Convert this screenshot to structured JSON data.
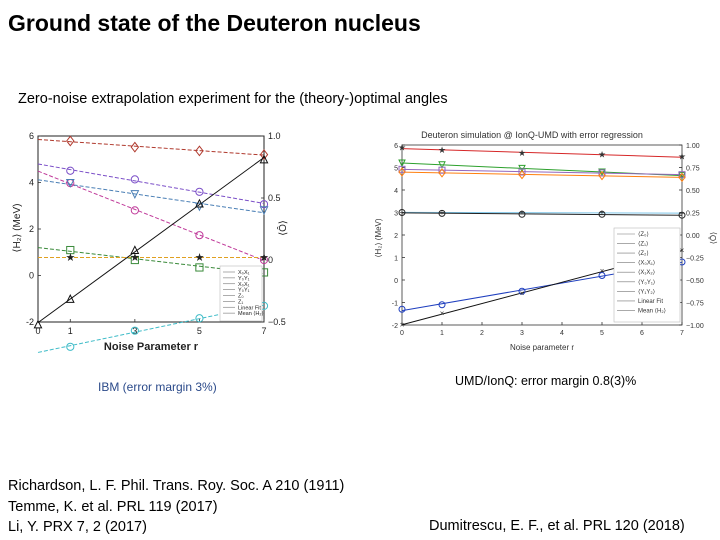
{
  "title": "Ground state of the Deuteron nucleus",
  "subtitle": "Zero-noise extrapolation experiment for the (theory-)optimal angles",
  "captions": {
    "left": "IBM (error margin 3%)",
    "right": "UMD/IonQ: error margin 0.8(3)%"
  },
  "references": {
    "left": [
      "Richardson, L. F. Phil. Trans. Roy. Soc. A 210  (1911)",
      "Temme, K.  et al. PRL 119 (2017)",
      "Li, Y. PRX 7, 2 (2017)"
    ],
    "right": "Dumitrescu, E. F., et al. PRL 120 (2018)"
  },
  "chart_data": [
    {
      "type": "line",
      "xlabel": "Noise Parameter r",
      "ylabel": "⟨H₂⟩ (MeV)",
      "y2label": "⟨Ô⟩",
      "xticks": [
        0,
        1,
        3,
        5,
        7
      ],
      "xlim": [
        0,
        7
      ],
      "ylim": [
        -2,
        6
      ],
      "yticks": [
        -2,
        0,
        2,
        4,
        6
      ],
      "y2lim": [
        -0.5,
        1.0
      ],
      "y2ticks": [
        "−0.5",
        "0",
        "0.5",
        "1.0"
      ],
      "legend": [
        "X₀X₁",
        "Y₀Y₁",
        "X₀X₁",
        "Y₀Y₁",
        "Z₀",
        "Z₁",
        "Linear Fit",
        "Mean ⟨H₂⟩"
      ],
      "legend_position": "bottom-right",
      "grid": false,
      "series": [
        {
          "color": "#b03a2e",
          "marker": "diamond",
          "axis": "right",
          "x": [
            1,
            3,
            5,
            7
          ],
          "values": [
            0.96,
            0.91,
            0.88,
            0.85
          ]
        },
        {
          "color": "#7b4fc8",
          "marker": "circle",
          "axis": "right",
          "x": [
            1,
            3,
            5,
            7
          ],
          "values": [
            0.72,
            0.65,
            0.55,
            0.45
          ]
        },
        {
          "color": "#c03a9a",
          "marker": "circle",
          "axis": "right",
          "x": [
            1,
            3,
            5,
            7
          ],
          "values": [
            0.62,
            0.4,
            0.2,
            0.0
          ]
        },
        {
          "color": "#4a7fb5",
          "marker": "triangle-down",
          "axis": "right",
          "x": [
            1,
            3,
            5,
            7
          ],
          "values": [
            0.62,
            0.53,
            0.43,
            0.4
          ]
        },
        {
          "color": "#3a8a3a",
          "marker": "square",
          "axis": "right",
          "x": [
            1,
            3,
            5,
            7
          ],
          "values": [
            0.08,
            0.0,
            -0.06,
            -0.1
          ]
        },
        {
          "color": "#e0a020",
          "marker": "star",
          "axis": "right",
          "x": [
            1,
            3,
            5,
            7
          ],
          "values": [
            0.02,
            0.02,
            0.02,
            0.02
          ]
        },
        {
          "color": "#3fbcc8",
          "marker": "circle",
          "axis": "right",
          "x": [
            1,
            3,
            5,
            7
          ],
          "values": [
            -0.7,
            -0.57,
            -0.47,
            -0.37
          ]
        },
        {
          "color": "#111111",
          "marker": "triangle",
          "axis": "left",
          "name": "Mean ⟨H₂⟩",
          "x": [
            0,
            1,
            3,
            5,
            7
          ],
          "values": [
            -2.1,
            -1.0,
            1.1,
            3.1,
            5.0
          ]
        }
      ]
    },
    {
      "type": "line",
      "title": "Deuteron simulation @ IonQ-UMD with error regression",
      "xlabel": "Noise parameter r",
      "ylabel": "⟨H₂⟩ (MeV)",
      "y2label": "⟨Ô⟩",
      "xticks": [
        0,
        1,
        2,
        3,
        4,
        5,
        6,
        7
      ],
      "xlim": [
        0,
        7
      ],
      "ylim": [
        -2,
        6
      ],
      "yticks": [
        -2,
        -1,
        0,
        1,
        2,
        3,
        4,
        5,
        6
      ],
      "y2lim": [
        -1.0,
        1.0
      ],
      "y2ticks": [
        "1.00",
        "0.75",
        "0.50",
        "0.25",
        "0.00",
        "−0.25",
        "−0.50",
        "−0.75",
        "−1.00"
      ],
      "legend": [
        "⟨Z₀⟩",
        "⟨Z₁⟩",
        "⟨Z₂⟩",
        "⟨X₀X₁⟩",
        "⟨X₁X₂⟩",
        "⟨Y₀Y₁⟩",
        "⟨Y₁Y₂⟩",
        "Linear Fit",
        "Mean ⟨H₂⟩"
      ],
      "legend_position": "bottom-right",
      "grid": false,
      "series": [
        {
          "name": "⟨Z₂⟩",
          "color": "#d62728",
          "marker": "star",
          "axis": "right",
          "x": [
            0,
            1,
            3,
            5,
            7
          ],
          "values": [
            0.97,
            0.94,
            0.91,
            0.89,
            0.87
          ]
        },
        {
          "name": "⟨Z₁⟩",
          "color": "#2ca02c",
          "marker": "triangle-down",
          "axis": "right",
          "x": [
            0,
            1,
            3,
            5,
            7
          ],
          "values": [
            0.8,
            0.78,
            0.74,
            0.7,
            0.66
          ]
        },
        {
          "name": "⟨X₀X₁⟩",
          "color": "#9467bd",
          "marker": "square",
          "axis": "right",
          "x": [
            0,
            1,
            3,
            5,
            7
          ],
          "values": [
            0.73,
            0.72,
            0.7,
            0.69,
            0.67
          ]
        },
        {
          "name": "⟨Y₀Y₁⟩",
          "color": "#ff7f0e",
          "marker": "diamond",
          "axis": "right",
          "x": [
            0,
            1,
            3,
            5,
            7
          ],
          "values": [
            0.7,
            0.69,
            0.67,
            0.66,
            0.64
          ]
        },
        {
          "name": "⟨Y₁Y₂⟩",
          "color": "#7fc6e8",
          "marker": "plus",
          "axis": "right",
          "x": [
            0,
            1,
            3,
            5,
            7
          ],
          "values": [
            0.25,
            0.25,
            0.25,
            0.25,
            0.24
          ]
        },
        {
          "name": "⟨X₁X₂⟩",
          "color": "#222222",
          "marker": "circle",
          "axis": "right",
          "x": [
            0,
            1,
            3,
            5,
            7
          ],
          "values": [
            0.25,
            0.24,
            0.23,
            0.23,
            0.22
          ]
        },
        {
          "name": "⟨Z₀⟩",
          "color": "#1f3fbf",
          "marker": "circle",
          "axis": "left",
          "x": [
            0,
            1,
            3,
            5,
            7
          ],
          "values": [
            -1.3,
            -1.1,
            -0.5,
            0.2,
            0.8
          ]
        },
        {
          "name": "Mean ⟨H₂⟩",
          "color": "#111111",
          "marker": "x",
          "axis": "left",
          "x": [
            0,
            1,
            3,
            5,
            7
          ],
          "values": [
            -2.0,
            -1.5,
            -0.6,
            0.4,
            1.3
          ]
        }
      ]
    }
  ]
}
